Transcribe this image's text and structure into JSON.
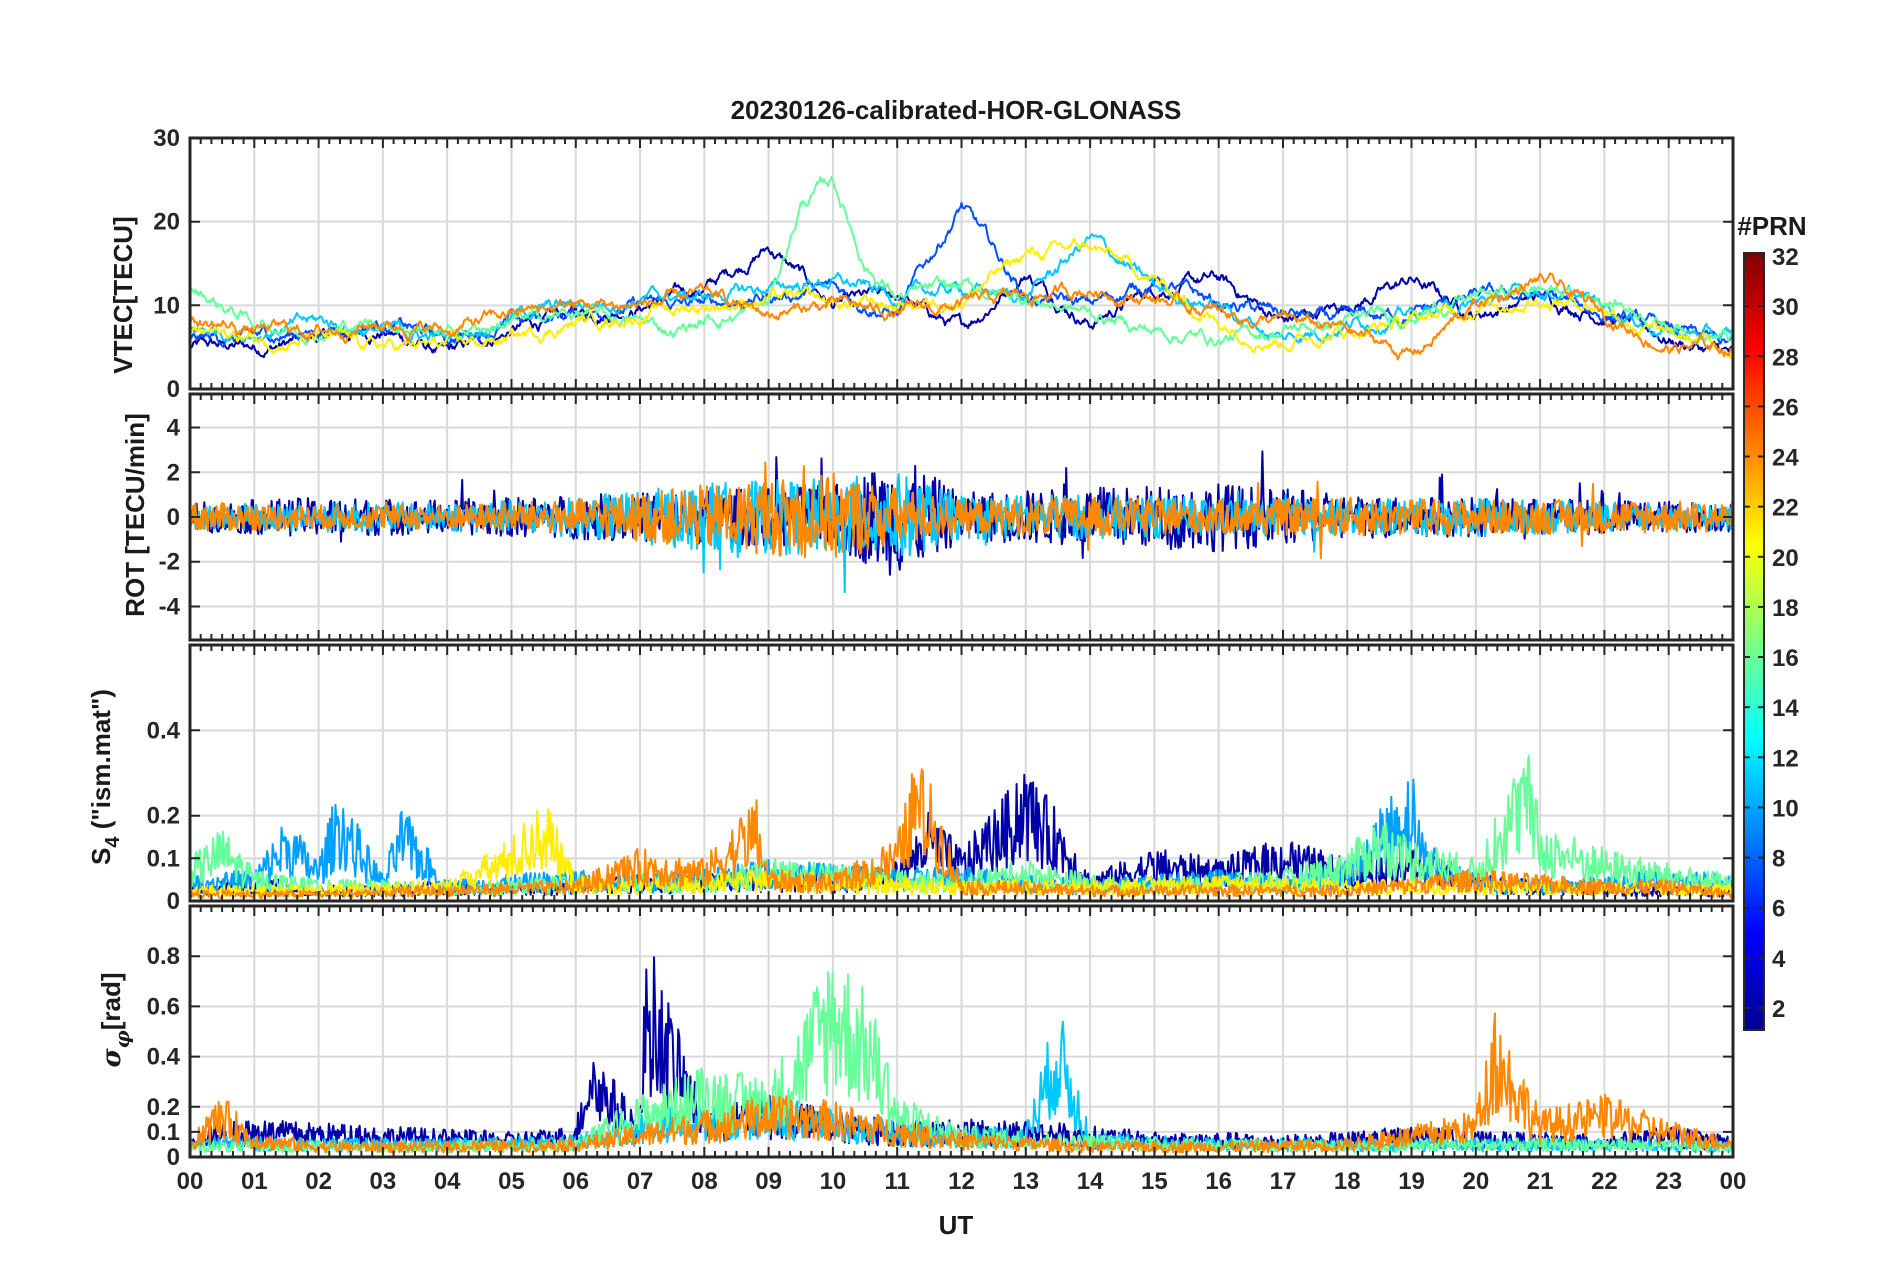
{
  "chart_data": [
    {
      "type": "line",
      "title": "20230126-calibrated-HOR-GLONASS",
      "ylabel": "VTEC[TECU]",
      "ylim": [
        0,
        30
      ],
      "yticks": [
        0,
        10,
        20,
        30
      ],
      "grid": true,
      "series": [
        {
          "color": "#0000a8",
          "x": [
            0,
            1,
            2,
            3,
            4,
            5,
            6,
            7,
            8,
            9,
            10,
            11,
            12,
            13,
            14,
            15,
            16,
            17,
            18,
            19,
            20,
            21,
            22,
            23,
            24
          ],
          "values": [
            5,
            5,
            6,
            7,
            4,
            7,
            9,
            10,
            12,
            17,
            10,
            11,
            7,
            14,
            8,
            12,
            13,
            8,
            10,
            13,
            9,
            11,
            9,
            6,
            4
          ]
        },
        {
          "color": "#0050ff",
          "x": [
            0,
            1,
            2,
            3,
            4,
            5,
            6,
            7,
            8,
            9,
            10,
            11,
            12,
            13,
            14,
            15,
            16,
            17,
            18,
            19,
            20,
            21,
            22,
            23,
            24
          ],
          "values": [
            6,
            6,
            7,
            8,
            6,
            8,
            9,
            10,
            10,
            11,
            12,
            9,
            22,
            11,
            10,
            13,
            10,
            9,
            8,
            9,
            11,
            11,
            9,
            7,
            5
          ]
        },
        {
          "color": "#00c8ff",
          "x": [
            0,
            1,
            2,
            3,
            4,
            5,
            6,
            7,
            8,
            9,
            10,
            11,
            12,
            13,
            14,
            15,
            16,
            17,
            18,
            19,
            20,
            21,
            22,
            23,
            24
          ],
          "values": [
            7,
            7,
            8,
            7,
            6,
            9,
            10,
            11,
            11,
            12,
            13,
            11,
            12,
            11,
            18,
            12,
            10,
            6,
            8,
            9,
            10,
            12,
            10,
            7,
            6
          ]
        },
        {
          "color": "#66ff99",
          "x": [
            0,
            1,
            2,
            3,
            4,
            5,
            6,
            7,
            7.5,
            8,
            9,
            9.5,
            10,
            10.5,
            11,
            12,
            13,
            14,
            15,
            16,
            17,
            18,
            19,
            20,
            21,
            22,
            23,
            24
          ],
          "values": [
            12,
            8,
            7,
            8,
            7,
            8,
            9,
            8,
            7,
            8,
            10,
            22,
            25,
            15,
            11,
            12,
            11,
            9,
            7,
            6,
            7,
            8,
            9,
            11,
            12,
            11,
            8,
            6
          ]
        },
        {
          "color": "#ffee00",
          "x": [
            0,
            1,
            2,
            3,
            4,
            5,
            6,
            7,
            8,
            9,
            10,
            11,
            12,
            13,
            14,
            15,
            16,
            17,
            18,
            19,
            20,
            21,
            22,
            23,
            24
          ],
          "values": [
            7,
            6,
            6,
            5,
            5,
            6,
            8,
            9,
            10,
            11,
            10,
            10,
            11,
            16,
            17,
            13,
            8,
            6,
            7,
            8,
            10,
            11,
            10,
            6,
            5
          ]
        },
        {
          "color": "#ff8800",
          "x": [
            0,
            1,
            2,
            3,
            4,
            5,
            6,
            7,
            8,
            9,
            10,
            11,
            12,
            13,
            14,
            15,
            16,
            17,
            18,
            19,
            20,
            21,
            22,
            23,
            24
          ],
          "values": [
            8,
            7,
            7,
            8,
            7,
            9,
            10,
            10,
            11,
            9,
            10,
            9,
            10,
            11,
            12,
            11,
            9,
            8,
            7,
            4,
            10,
            13,
            9,
            5,
            5
          ]
        }
      ]
    },
    {
      "type": "line",
      "ylabel": "ROT [TECU/min]",
      "ylim": [
        -5.5,
        5.5
      ],
      "yticks": [
        -4,
        -2,
        0,
        2,
        4
      ],
      "grid": true,
      "series": [
        {
          "color": "#0000a8",
          "x": [
            0,
            2,
            4,
            6,
            8,
            10,
            11,
            12,
            14,
            16,
            18,
            20,
            22,
            24
          ],
          "values": [
            0.6,
            0.8,
            0.7,
            0.9,
            1.1,
            1.3,
            2.5,
            1.0,
            1.2,
            1.4,
            0.9,
            0.8,
            0.7,
            0.6
          ]
        },
        {
          "color": "#00c8ff",
          "x": [
            0,
            2,
            4,
            6,
            8,
            10,
            11,
            12,
            14,
            16,
            18,
            20,
            22,
            24
          ],
          "values": [
            0.5,
            0.6,
            0.6,
            0.8,
            1.4,
            1.6,
            1.8,
            0.9,
            0.9,
            0.8,
            0.7,
            0.8,
            0.6,
            0.5
          ]
        },
        {
          "color": "#ff8800",
          "x": [
            0,
            2,
            4,
            6,
            8,
            10,
            11,
            12,
            14,
            16,
            18,
            20,
            22,
            24
          ],
          "values": [
            0.6,
            0.5,
            0.5,
            0.7,
            1.3,
            1.8,
            1.2,
            0.7,
            0.8,
            0.7,
            0.8,
            0.7,
            0.7,
            0.6
          ]
        }
      ]
    },
    {
      "type": "line",
      "ylabel": "S",
      "ylabel_sub": "4",
      "ylabel_tail": " (\"ism.mat\")",
      "ylim": [
        0,
        0.6
      ],
      "yticks": [
        0,
        0.1,
        0.2,
        0.4
      ],
      "grid": true,
      "series": [
        {
          "color": "#0000a8",
          "x": [
            0,
            1,
            2,
            3,
            4,
            5,
            6,
            7,
            8,
            9,
            10,
            11,
            11.5,
            12,
            13,
            13.5,
            14,
            15,
            16,
            17,
            18,
            19,
            20,
            21,
            22,
            23,
            24
          ],
          "values": [
            0.03,
            0.05,
            0.03,
            0.03,
            0.04,
            0.03,
            0.04,
            0.05,
            0.05,
            0.06,
            0.05,
            0.08,
            0.17,
            0.1,
            0.25,
            0.17,
            0.05,
            0.1,
            0.08,
            0.12,
            0.08,
            0.1,
            0.05,
            0.04,
            0.03,
            0.03,
            0.03
          ]
        },
        {
          "color": "#00a0ff",
          "x": [
            0,
            1,
            1.5,
            2,
            2.3,
            3,
            3.3,
            4,
            5,
            6,
            7,
            8,
            9,
            10,
            11,
            12,
            13,
            14,
            15,
            16,
            17,
            18,
            19,
            19.2,
            20,
            21,
            22,
            23,
            24
          ],
          "values": [
            0.05,
            0.06,
            0.16,
            0.08,
            0.22,
            0.05,
            0.18,
            0.04,
            0.05,
            0.06,
            0.05,
            0.06,
            0.08,
            0.07,
            0.06,
            0.07,
            0.05,
            0.04,
            0.05,
            0.06,
            0.05,
            0.08,
            0.26,
            0.12,
            0.05,
            0.04,
            0.05,
            0.06,
            0.05
          ]
        },
        {
          "color": "#66ff99",
          "x": [
            0,
            0.5,
            1,
            2,
            3,
            4,
            5,
            6,
            7,
            8,
            9,
            10,
            11,
            12,
            13,
            14,
            15,
            16,
            17,
            18,
            18.5,
            19,
            20,
            20.8,
            21,
            22,
            23,
            24
          ],
          "values": [
            0.08,
            0.14,
            0.06,
            0.04,
            0.04,
            0.03,
            0.04,
            0.05,
            0.05,
            0.05,
            0.08,
            0.07,
            0.06,
            0.05,
            0.08,
            0.05,
            0.04,
            0.05,
            0.06,
            0.1,
            0.16,
            0.12,
            0.08,
            0.3,
            0.15,
            0.1,
            0.07,
            0.05
          ]
        },
        {
          "color": "#ffee00",
          "x": [
            0,
            2,
            4,
            5,
            5.5,
            6,
            7,
            8,
            9,
            10,
            12,
            14,
            16,
            18,
            20,
            22,
            24
          ],
          "values": [
            0.03,
            0.03,
            0.04,
            0.12,
            0.2,
            0.05,
            0.04,
            0.05,
            0.06,
            0.05,
            0.04,
            0.04,
            0.05,
            0.04,
            0.04,
            0.04,
            0.03
          ]
        },
        {
          "color": "#ff8800",
          "x": [
            0,
            2,
            4,
            6,
            7,
            8,
            8.8,
            9,
            10,
            11,
            11.3,
            11.6,
            12,
            14,
            16,
            18,
            20,
            21,
            22,
            23,
            24
          ],
          "values": [
            0.02,
            0.02,
            0.03,
            0.04,
            0.1,
            0.08,
            0.2,
            0.06,
            0.05,
            0.12,
            0.28,
            0.2,
            0.04,
            0.03,
            0.03,
            0.03,
            0.06,
            0.05,
            0.04,
            0.04,
            0.02
          ]
        }
      ]
    },
    {
      "type": "line",
      "ylabel": "σ",
      "ylabel_sub": "φ",
      "ylabel_tail": "[rad]",
      "ylim": [
        0,
        1
      ],
      "yticks": [
        0,
        0.1,
        0.2,
        0.4,
        0.6,
        0.8
      ],
      "xlabel": "UT",
      "xlim": [
        0,
        24
      ],
      "xticklabels": [
        "00",
        "01",
        "02",
        "03",
        "04",
        "05",
        "06",
        "07",
        "08",
        "09",
        "10",
        "11",
        "12",
        "13",
        "14",
        "15",
        "16",
        "17",
        "18",
        "19",
        "20",
        "21",
        "22",
        "23",
        "00"
      ],
      "grid": true,
      "series": [
        {
          "color": "#0000a8",
          "x": [
            0,
            1,
            2,
            3,
            4,
            5,
            6,
            6.2,
            7,
            7.1,
            8,
            9,
            10,
            11,
            12,
            13,
            14,
            15,
            16,
            17,
            18,
            19,
            20,
            21,
            22,
            23,
            24
          ],
          "values": [
            0.1,
            0.12,
            0.11,
            0.1,
            0.09,
            0.08,
            0.1,
            0.38,
            0.12,
            0.72,
            0.15,
            0.2,
            0.15,
            0.12,
            0.12,
            0.12,
            0.1,
            0.08,
            0.08,
            0.07,
            0.08,
            0.1,
            0.08,
            0.08,
            0.07,
            0.1,
            0.07
          ]
        },
        {
          "color": "#00c8ff",
          "x": [
            0,
            2,
            4,
            6,
            7,
            8,
            9,
            10,
            11,
            12,
            13,
            13.5,
            14,
            16,
            18,
            20,
            22,
            24
          ],
          "values": [
            0.07,
            0.06,
            0.06,
            0.07,
            0.15,
            0.18,
            0.2,
            0.15,
            0.12,
            0.1,
            0.1,
            0.5,
            0.08,
            0.06,
            0.06,
            0.06,
            0.06,
            0.05
          ]
        },
        {
          "color": "#66ff99",
          "x": [
            0,
            2,
            4,
            6,
            7,
            8,
            9,
            9.5,
            10,
            10.3,
            10.6,
            11,
            12,
            14,
            16,
            18,
            20,
            22,
            24
          ],
          "values": [
            0.05,
            0.05,
            0.05,
            0.06,
            0.2,
            0.3,
            0.25,
            0.45,
            0.7,
            0.6,
            0.5,
            0.2,
            0.1,
            0.07,
            0.06,
            0.05,
            0.06,
            0.06,
            0.05
          ]
        },
        {
          "color": "#ff8800",
          "x": [
            0,
            0.5,
            1,
            2,
            4,
            6,
            8,
            9,
            10,
            11,
            12,
            14,
            16,
            18,
            19,
            20,
            20.3,
            21,
            22,
            23,
            24
          ],
          "values": [
            0.06,
            0.2,
            0.08,
            0.05,
            0.05,
            0.06,
            0.15,
            0.2,
            0.18,
            0.12,
            0.08,
            0.05,
            0.05,
            0.06,
            0.1,
            0.15,
            0.48,
            0.15,
            0.2,
            0.12,
            0.06
          ]
        }
      ]
    }
  ],
  "colorbar": {
    "label": "#PRN",
    "ticks": [
      "32",
      "30",
      "28",
      "26",
      "24",
      "22",
      "20",
      "18",
      "16",
      "14",
      "12",
      "10",
      "8",
      "6",
      "4",
      "2"
    ],
    "stops": [
      "#00008f",
      "#0000ff",
      "#0080ff",
      "#00ffff",
      "#80ff80",
      "#ffff00",
      "#ff8000",
      "#ff0000",
      "#800000"
    ]
  }
}
